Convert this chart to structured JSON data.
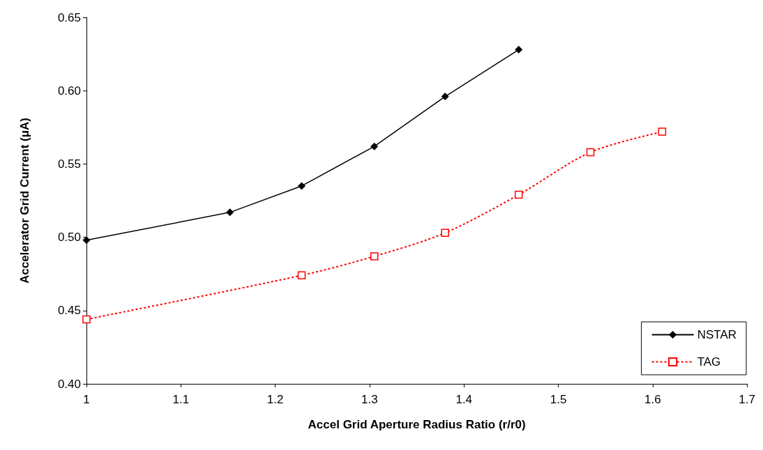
{
  "chart_data": {
    "type": "line",
    "xlabel": "Accel Grid Aperture Radius Ratio (r/r0)",
    "ylabel": "Accelerator Grid Current (μA)",
    "xlim": [
      1,
      1.7
    ],
    "xticks": [
      1,
      1.1,
      1.2,
      1.3,
      1.4,
      1.5,
      1.6,
      1.7
    ],
    "ylim": [
      0.4,
      0.65
    ],
    "yticks": [
      {
        "value": 0.4,
        "label": "0.40"
      },
      {
        "value": 0.45,
        "label": "0.45"
      },
      {
        "value": 0.5,
        "label": "0.50"
      },
      {
        "value": 0.55,
        "label": "0.55"
      },
      {
        "value": 0.6,
        "label": "0.60"
      },
      {
        "value": 0.65,
        "label": "0.65"
      }
    ],
    "grid": false,
    "legend": "bottom right",
    "series": [
      {
        "name": "NSTAR",
        "color": "#000000",
        "marker": "diamond",
        "line_style": "solid",
        "x": [
          1,
          1.152,
          1.228,
          1.305,
          1.38,
          1.458
        ],
        "values": [
          0.498,
          0.517,
          0.535,
          0.562,
          0.596,
          0.628
        ]
      },
      {
        "name": "TAG",
        "color": "#ff0000",
        "marker": "square",
        "line_style": "dotted",
        "x": [
          1,
          1.228,
          1.305,
          1.38,
          1.458,
          1.534,
          1.61
        ],
        "values": [
          0.444,
          0.474,
          0.487,
          0.503,
          0.529,
          0.558,
          0.572
        ]
      }
    ]
  }
}
